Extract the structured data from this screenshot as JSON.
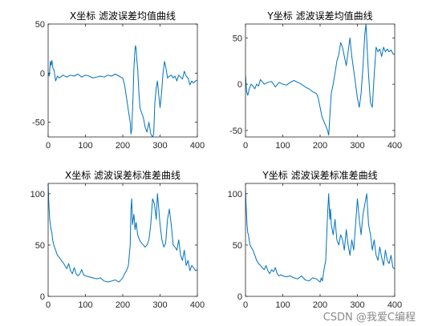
{
  "figure": {
    "watermark": "CSDN @我爱C编程"
  },
  "colors": {
    "line": "#0072bd",
    "axis": "#262626",
    "background": "#ffffff"
  },
  "chart_data": [
    {
      "type": "line",
      "title": "X坐标 滤波误差均值曲线",
      "xlim": [
        0,
        400
      ],
      "ylim": [
        -65,
        50
      ],
      "xticks": [
        0,
        100,
        200,
        300,
        400
      ],
      "yticks": [
        -50,
        0,
        50
      ],
      "series": [
        {
          "x": [
            0,
            3,
            6,
            8,
            10,
            13,
            16,
            20,
            25,
            30,
            40,
            50,
            60,
            70,
            80,
            90,
            100,
            110,
            120,
            130,
            140,
            150,
            160,
            170,
            180,
            190,
            200,
            205,
            210,
            215,
            220,
            222,
            224,
            226,
            228,
            230,
            232,
            234,
            236,
            238,
            240,
            243,
            246,
            250,
            255,
            260,
            265,
            270,
            275,
            280,
            283,
            286,
            290,
            293,
            296,
            300,
            304,
            308,
            312,
            316,
            320,
            325,
            330,
            335,
            340,
            345,
            350,
            355,
            360,
            365,
            370,
            375,
            380,
            385,
            390,
            395,
            400
          ],
          "y": [
            0,
            -3,
            12,
            8,
            13,
            5,
            3,
            -8,
            -3,
            -5,
            -2,
            -4,
            -2,
            -3,
            -1,
            -4,
            -2,
            -3,
            -5,
            -4,
            -3,
            -4,
            -2,
            -3,
            -1,
            -3,
            -5,
            -12,
            -25,
            -38,
            -50,
            -62,
            -58,
            -40,
            -20,
            5,
            20,
            28,
            25,
            12,
            5,
            -18,
            -35,
            -40,
            -45,
            -55,
            -60,
            -50,
            -62,
            -65,
            -62,
            -30,
            -15,
            -8,
            -20,
            -35,
            -20,
            0,
            12,
            5,
            -5,
            -3,
            -2,
            -5,
            -3,
            -8,
            -2,
            -4,
            -6,
            2,
            -3,
            -5,
            -12,
            -8,
            -10,
            -8,
            -7
          ]
        }
      ]
    },
    {
      "type": "line",
      "title": "Y坐标 滤波误差均值曲线",
      "xlim": [
        0,
        400
      ],
      "ylim": [
        -57,
        65
      ],
      "xticks": [
        0,
        100,
        200,
        300,
        400
      ],
      "yticks": [
        -50,
        0,
        50
      ],
      "series": [
        {
          "x": [
            0,
            3,
            6,
            10,
            15,
            20,
            25,
            30,
            35,
            40,
            50,
            60,
            70,
            80,
            90,
            100,
            110,
            120,
            130,
            140,
            150,
            160,
            170,
            180,
            190,
            195,
            200,
            205,
            210,
            215,
            220,
            223,
            226,
            230,
            235,
            240,
            245,
            250,
            255,
            260,
            265,
            270,
            275,
            280,
            285,
            290,
            295,
            300,
            305,
            310,
            315,
            320,
            323,
            326,
            330,
            335,
            340,
            345,
            350,
            355,
            360,
            365,
            370,
            375,
            380,
            385,
            390,
            395,
            400
          ],
          "y": [
            10,
            -8,
            -12,
            -5,
            0,
            -2,
            -5,
            0,
            -2,
            5,
            0,
            2,
            3,
            -3,
            2,
            0,
            -1,
            2,
            4,
            2,
            0,
            -3,
            -5,
            -8,
            -10,
            -15,
            -25,
            -35,
            -40,
            -45,
            -50,
            -55,
            -35,
            -10,
            0,
            12,
            25,
            32,
            45,
            40,
            30,
            20,
            35,
            50,
            30,
            15,
            0,
            -15,
            -25,
            -10,
            20,
            55,
            65,
            40,
            10,
            -20,
            -25,
            10,
            40,
            35,
            38,
            30,
            40,
            35,
            38,
            35,
            37,
            33,
            32
          ]
        }
      ]
    },
    {
      "type": "line",
      "title": "X坐标 滤波误差标准差曲线",
      "xlim": [
        0,
        400
      ],
      "ylim": [
        0,
        110
      ],
      "xticks": [
        0,
        100,
        200,
        300,
        400
      ],
      "yticks": [
        0,
        50,
        100
      ],
      "series": [
        {
          "x": [
            0,
            2,
            4,
            6,
            8,
            10,
            12,
            15,
            20,
            25,
            30,
            35,
            40,
            45,
            50,
            55,
            60,
            65,
            70,
            75,
            80,
            85,
            90,
            95,
            100,
            110,
            120,
            130,
            140,
            150,
            160,
            170,
            180,
            190,
            200,
            205,
            210,
            215,
            220,
            222,
            224,
            226,
            228,
            230,
            233,
            236,
            240,
            245,
            250,
            255,
            260,
            265,
            270,
            275,
            280,
            285,
            290,
            293,
            296,
            300,
            305,
            310,
            315,
            320,
            325,
            330,
            335,
            340,
            345,
            350,
            355,
            360,
            365,
            370,
            375,
            380,
            385,
            390,
            395,
            400
          ],
          "y": [
            110,
            90,
            75,
            70,
            65,
            62,
            55,
            50,
            45,
            40,
            38,
            35,
            33,
            30,
            27,
            32,
            25,
            22,
            28,
            22,
            20,
            22,
            26,
            21,
            20,
            19,
            18,
            17,
            18,
            15,
            14,
            15,
            16,
            14,
            18,
            22,
            25,
            30,
            50,
            85,
            95,
            70,
            75,
            80,
            65,
            72,
            60,
            55,
            52,
            50,
            48,
            50,
            55,
            70,
            95,
            90,
            75,
            100,
            88,
            70,
            55,
            48,
            52,
            75,
            85,
            70,
            50,
            48,
            45,
            55,
            40,
            35,
            45,
            30,
            35,
            25,
            30,
            28,
            25,
            26
          ]
        }
      ]
    },
    {
      "type": "line",
      "title": "Y坐标 滤波误差标准差曲线",
      "xlim": [
        0,
        400
      ],
      "ylim": [
        0,
        110
      ],
      "xticks": [
        0,
        100,
        200,
        300,
        400
      ],
      "yticks": [
        0,
        50,
        100
      ],
      "series": [
        {
          "x": [
            0,
            2,
            4,
            6,
            8,
            10,
            12,
            15,
            20,
            25,
            30,
            35,
            40,
            45,
            50,
            55,
            60,
            65,
            70,
            75,
            80,
            85,
            90,
            95,
            100,
            110,
            120,
            130,
            140,
            150,
            160,
            170,
            180,
            190,
            200,
            203,
            206,
            210,
            215,
            220,
            223,
            226,
            228,
            230,
            235,
            240,
            245,
            250,
            255,
            260,
            265,
            270,
            275,
            280,
            285,
            290,
            295,
            300,
            305,
            310,
            315,
            320,
            325,
            330,
            335,
            340,
            345,
            350,
            355,
            360,
            365,
            370,
            375,
            380,
            385,
            390,
            395,
            400
          ],
          "y": [
            105,
            85,
            70,
            62,
            60,
            55,
            50,
            48,
            45,
            40,
            35,
            32,
            30,
            28,
            26,
            30,
            25,
            22,
            26,
            24,
            28,
            22,
            20,
            21,
            20,
            19,
            20,
            18,
            17,
            20,
            16,
            15,
            18,
            17,
            14,
            18,
            15,
            25,
            35,
            80,
            100,
            75,
            85,
            70,
            60,
            75,
            55,
            50,
            60,
            55,
            45,
            65,
            50,
            40,
            55,
            45,
            70,
            95,
            75,
            60,
            80,
            90,
            100,
            70,
            60,
            45,
            55,
            40,
            35,
            48,
            38,
            30,
            45,
            35,
            32,
            40,
            28,
            27
          ]
        }
      ]
    }
  ]
}
